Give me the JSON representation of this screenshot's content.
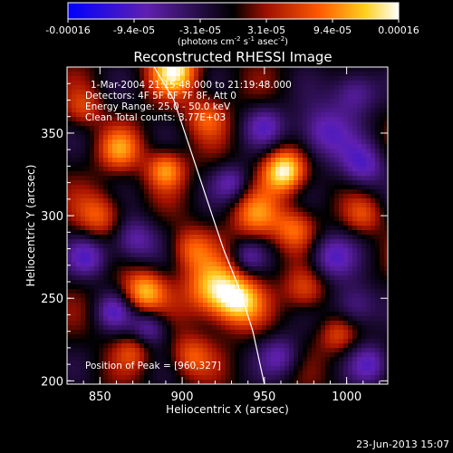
{
  "chart_data": {
    "type": "heatmap",
    "title": "Reconstructed RHESSI Image",
    "xlabel": "Heliocentric X (arcsec)",
    "ylabel": "Heliocentric Y (arcsec)",
    "xlim": [
      830,
      1025
    ],
    "ylim": [
      198,
      390
    ],
    "x_ticks": [
      "850",
      "900",
      "950",
      "1000"
    ],
    "y_ticks": [
      "200",
      "250",
      "300",
      "350"
    ],
    "colorbar": {
      "ticks": [
        "-0.00016",
        "-9.4e-05",
        "-3.1e-05",
        "3.1e-05",
        "9.4e-05",
        "0.00016"
      ],
      "units": "(photons cm-2 s-1 asec-2)",
      "range": [
        -0.00016,
        0.00016
      ],
      "colors": [
        "#0000ff",
        "#6020b0",
        "#000000",
        "#a01000",
        "#ff5a00",
        "#ffd020",
        "#ffffff"
      ]
    },
    "annotations": [
      "1-Mar-2004 21:15:48.000 to 21:19:48.000",
      "Detectors: 4F 5F 6F 7F 8F, Att 0",
      "Energy Range: 25.0 - 50.0 keV",
      "Clean    Total counts: 3.77E+03"
    ],
    "peak_label": "Position of Peak = [960,327]",
    "peak_position": [
      960,
      327
    ],
    "limb_curve": [
      [
        883,
        390
      ],
      [
        895,
        370
      ],
      [
        905,
        340
      ],
      [
        915,
        310
      ],
      [
        925,
        280
      ],
      [
        935,
        255
      ],
      [
        943,
        230
      ],
      [
        950,
        198
      ]
    ],
    "sources": [
      {
        "x": 962,
        "y": 327,
        "strength": 1.0,
        "size": 9
      },
      {
        "x": 895,
        "y": 388,
        "strength": 0.9,
        "size": 10
      },
      {
        "x": 920,
        "y": 255,
        "strength": 0.85,
        "size": 12
      },
      {
        "x": 935,
        "y": 248,
        "strength": 0.7,
        "size": 10
      },
      {
        "x": 877,
        "y": 254,
        "strength": 0.75,
        "size": 9
      },
      {
        "x": 890,
        "y": 328,
        "strength": 0.65,
        "size": 8
      },
      {
        "x": 862,
        "y": 340,
        "strength": 0.55,
        "size": 9
      },
      {
        "x": 850,
        "y": 300,
        "strength": 0.5,
        "size": 10
      },
      {
        "x": 945,
        "y": 300,
        "strength": 0.55,
        "size": 10
      },
      {
        "x": 968,
        "y": 292,
        "strength": 0.5,
        "size": 9
      },
      {
        "x": 975,
        "y": 255,
        "strength": 0.45,
        "size": 9
      },
      {
        "x": 905,
        "y": 280,
        "strength": 0.45,
        "size": 9
      },
      {
        "x": 995,
        "y": 228,
        "strength": 0.4,
        "size": 8
      },
      {
        "x": 905,
        "y": 215,
        "strength": 0.45,
        "size": 9
      },
      {
        "x": 870,
        "y": 218,
        "strength": 0.35,
        "size": 8
      },
      {
        "x": 1010,
        "y": 300,
        "strength": 0.35,
        "size": 8
      },
      {
        "x": 915,
        "y": 360,
        "strength": 0.45,
        "size": 9
      },
      {
        "x": 840,
        "y": 365,
        "strength": 0.35,
        "size": 8
      },
      {
        "x": 1005,
        "y": 375,
        "strength": -0.55,
        "size": 10
      },
      {
        "x": 985,
        "y": 350,
        "strength": -0.6,
        "size": 12
      },
      {
        "x": 1010,
        "y": 330,
        "strength": -0.55,
        "size": 10
      },
      {
        "x": 870,
        "y": 285,
        "strength": -0.55,
        "size": 10
      },
      {
        "x": 843,
        "y": 275,
        "strength": -0.5,
        "size": 9
      },
      {
        "x": 990,
        "y": 275,
        "strength": -0.55,
        "size": 10
      },
      {
        "x": 1005,
        "y": 245,
        "strength": -0.5,
        "size": 10
      },
      {
        "x": 1015,
        "y": 210,
        "strength": -0.5,
        "size": 9
      },
      {
        "x": 950,
        "y": 355,
        "strength": -0.45,
        "size": 9
      },
      {
        "x": 930,
        "y": 320,
        "strength": -0.45,
        "size": 8
      },
      {
        "x": 880,
        "y": 232,
        "strength": -0.5,
        "size": 8
      },
      {
        "x": 960,
        "y": 215,
        "strength": -0.45,
        "size": 9
      },
      {
        "x": 940,
        "y": 275,
        "strength": -0.35,
        "size": 7
      },
      {
        "x": 858,
        "y": 242,
        "strength": -0.45,
        "size": 8
      }
    ]
  },
  "footer": {
    "timestamp": "23-Jun-2013 15:07"
  }
}
